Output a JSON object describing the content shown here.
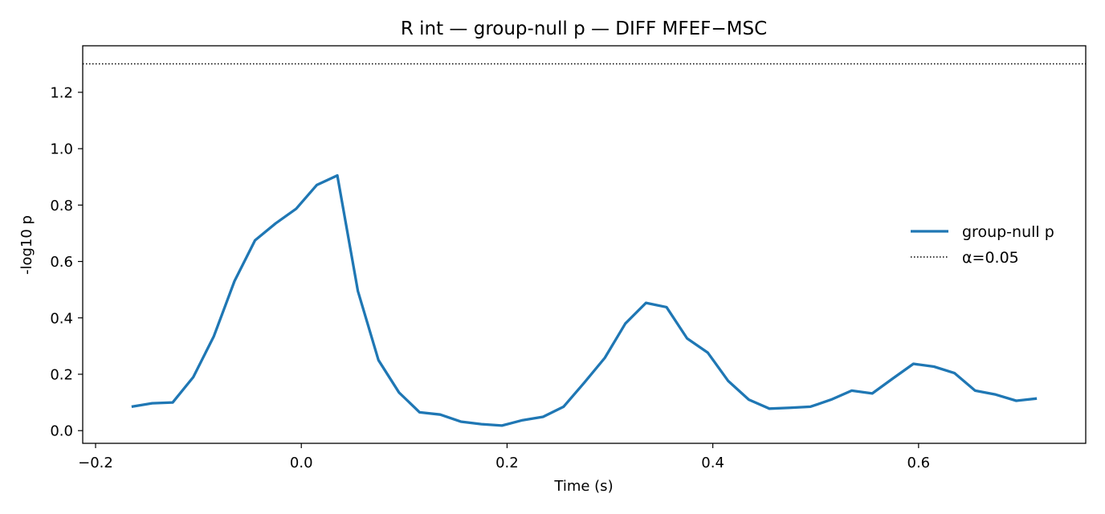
{
  "chart_data": {
    "type": "line",
    "title": "R int — group-null p — DIFF MFEF−MSC",
    "xlabel": "Time (s)",
    "ylabel": "-log10 p",
    "xlim": [
      -0.2125,
      0.7625
    ],
    "ylim": [
      -0.045,
      1.365
    ],
    "xticks": [
      -0.2,
      0.0,
      0.2,
      0.4,
      0.6
    ],
    "xtick_labels": [
      "−0.2",
      "0.0",
      "0.2",
      "0.4",
      "0.6"
    ],
    "yticks": [
      0.0,
      0.2,
      0.4,
      0.6,
      0.8,
      1.0,
      1.2
    ],
    "ytick_labels": [
      "0.0",
      "0.2",
      "0.4",
      "0.6",
      "0.8",
      "1.0",
      "1.2"
    ],
    "grid": false,
    "legend_position": "center right",
    "series": [
      {
        "name": "group-null p",
        "color": "#1f77b4",
        "style": "solid",
        "x": [
          -0.165,
          -0.145,
          -0.125,
          -0.105,
          -0.085,
          -0.065,
          -0.045,
          -0.025,
          -0.005,
          0.015,
          0.035,
          0.055,
          0.075,
          0.095,
          0.115,
          0.135,
          0.155,
          0.175,
          0.195,
          0.215,
          0.235,
          0.255,
          0.275,
          0.295,
          0.315,
          0.335,
          0.355,
          0.375,
          0.395,
          0.415,
          0.435,
          0.455,
          0.475,
          0.495,
          0.515,
          0.535,
          0.555,
          0.575,
          0.595,
          0.615,
          0.635,
          0.655,
          0.675,
          0.695,
          0.715
        ],
        "y": [
          0.085,
          0.097,
          0.1,
          0.19,
          0.335,
          0.53,
          0.675,
          0.735,
          0.787,
          0.871,
          0.905,
          0.495,
          0.25,
          0.135,
          0.065,
          0.057,
          0.032,
          0.023,
          0.018,
          0.037,
          0.049,
          0.085,
          0.17,
          0.258,
          0.38,
          0.453,
          0.438,
          0.327,
          0.277,
          0.176,
          0.11,
          0.078,
          0.081,
          0.085,
          0.11,
          0.142,
          0.132,
          0.185,
          0.237,
          0.227,
          0.204,
          0.142,
          0.128,
          0.106,
          0.114
        ]
      }
    ],
    "reference_lines": [
      {
        "name": "α=0.05",
        "orientation": "horizontal",
        "y": 1.301,
        "color": "#000000",
        "style": "dotted"
      }
    ]
  }
}
